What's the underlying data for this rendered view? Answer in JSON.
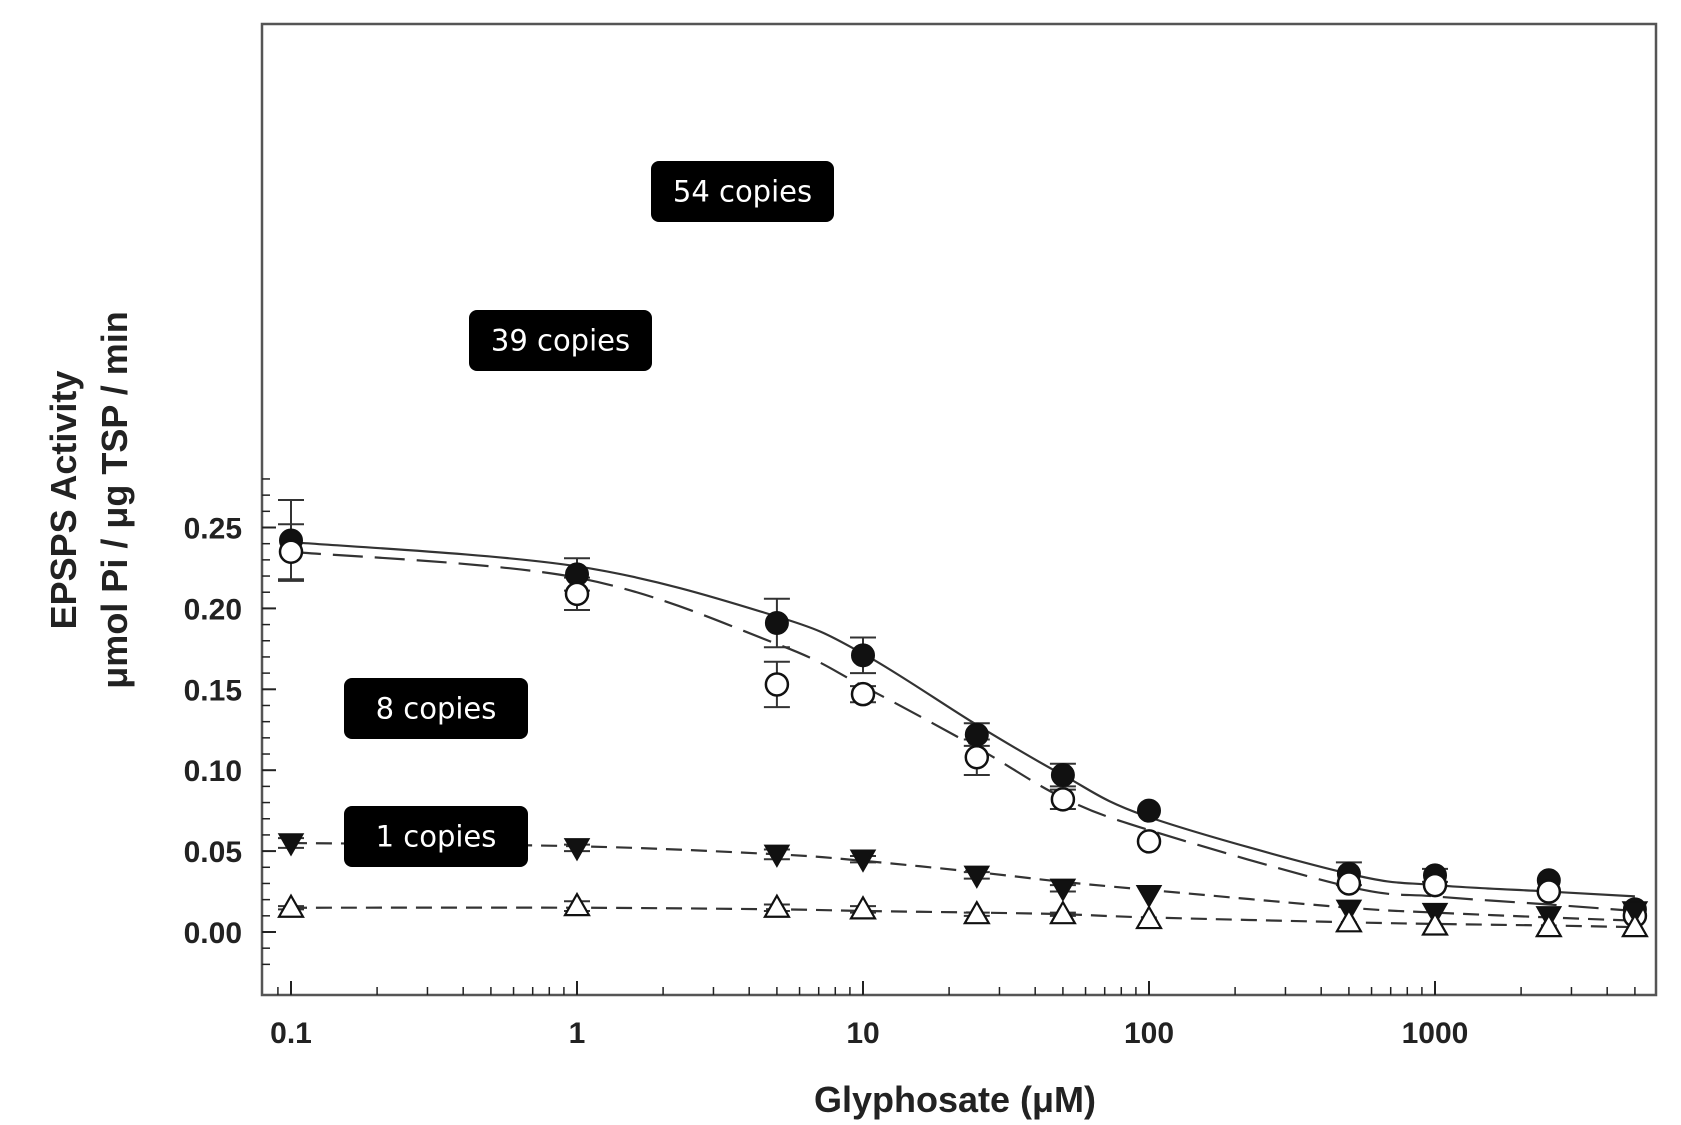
{
  "chart_data": {
    "type": "scatter",
    "xlabel": "Glyphosate (μM)",
    "ylabel": [
      "EPSPS Activity",
      "μmol Pi / μg TSP / min"
    ],
    "x_scale": "log",
    "xlim": [
      0.08,
      6500
    ],
    "ylim": [
      -0.02,
      0.28
    ],
    "x_ticks": [
      0.1,
      1,
      10,
      100,
      1000
    ],
    "x_tick_labels": [
      "0.1",
      "1",
      "10",
      "100",
      "1000"
    ],
    "y_ticks": [
      0.0,
      0.05,
      0.1,
      0.15,
      0.2,
      0.25
    ],
    "y_tick_labels": [
      "0.00",
      "0.05",
      "0.10",
      "0.15",
      "0.20",
      "0.25"
    ],
    "grid": false,
    "x": [
      0.1,
      1,
      5,
      10,
      25,
      50,
      100,
      500,
      1000,
      2500,
      5000
    ],
    "series": [
      {
        "label": "54 copies",
        "marker": "filled-circle",
        "line": "solid",
        "values": [
          0.242,
          0.221,
          0.191,
          0.171,
          0.122,
          0.097,
          0.075,
          0.036,
          0.035,
          0.032,
          0.014
        ],
        "errors": [
          0.025,
          0.01,
          0.015,
          0.011,
          0.007,
          0.007,
          0.0,
          0.007,
          0.004,
          0.0,
          0.0
        ],
        "fit": [
          0.241,
          0.226,
          0.195,
          0.172,
          0.128,
          0.097,
          0.071,
          0.036,
          0.029,
          0.025,
          0.022
        ]
      },
      {
        "label": "39 copies",
        "marker": "open-circle",
        "line": "long-dash",
        "values": [
          0.235,
          0.209,
          0.153,
          0.147,
          0.108,
          0.082,
          0.056,
          0.03,
          0.029,
          0.025,
          0.01
        ],
        "errors": [
          0.017,
          0.01,
          0.014,
          0.005,
          0.011,
          0.006,
          0.0,
          0.0,
          0.0,
          0.0,
          0.0
        ],
        "fit": [
          0.235,
          0.219,
          0.178,
          0.152,
          0.114,
          0.083,
          0.063,
          0.028,
          0.022,
          0.017,
          0.013
        ]
      },
      {
        "label": "8 copies",
        "marker": "filled-triangle-down",
        "line": "short-dash",
        "values": [
          0.055,
          0.052,
          0.048,
          0.045,
          0.035,
          0.027,
          0.023,
          0.014,
          0.012,
          0.01,
          0.013
        ],
        "errors": [
          0.003,
          0.002,
          0.003,
          0.002,
          0.002,
          0.002,
          0.0,
          0.0,
          0.0,
          0.0,
          0.0
        ],
        "fit": [
          0.055,
          0.053,
          0.048,
          0.044,
          0.037,
          0.031,
          0.026,
          0.015,
          0.012,
          0.009,
          0.007
        ]
      },
      {
        "label": "1 copies",
        "marker": "open-triangle-up",
        "line": "short-dash",
        "values": [
          0.015,
          0.016,
          0.015,
          0.014,
          0.011,
          0.011,
          0.008,
          0.006,
          0.004,
          0.003,
          0.003
        ],
        "errors": [
          0.001,
          0.003,
          0.002,
          0.002,
          0.001,
          0.001,
          0.0,
          0.0,
          0.0,
          0.0,
          0.0
        ],
        "fit": [
          0.015,
          0.015,
          0.014,
          0.013,
          0.012,
          0.011,
          0.009,
          0.006,
          0.005,
          0.004,
          0.003
        ]
      }
    ],
    "annotations": [
      "54 copies",
      "39 copies",
      "8 copies",
      "1 copies"
    ],
    "colors": {
      "ink": "#222222",
      "badge_bg": "#000000",
      "badge_text": "#ffffff",
      "frame": "#555555"
    }
  }
}
